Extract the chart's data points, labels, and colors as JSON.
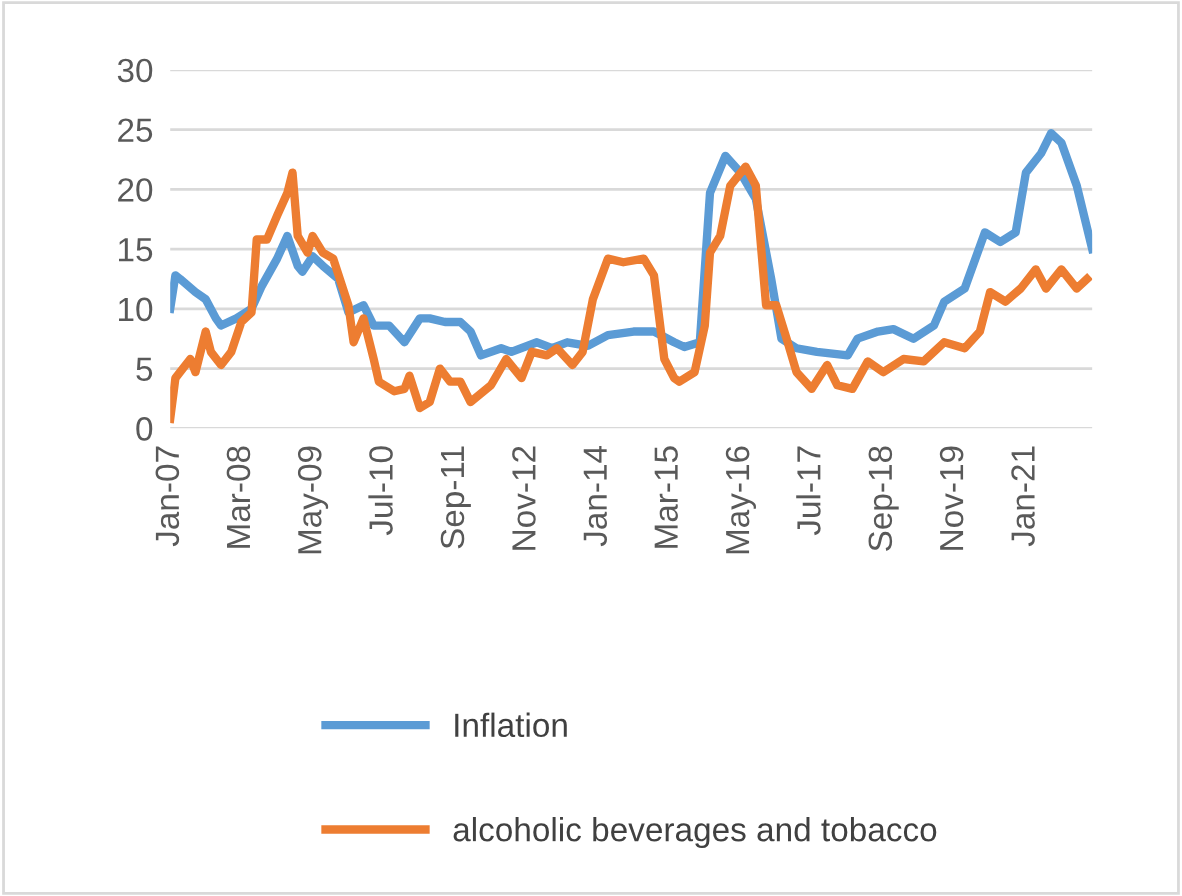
{
  "chart_data": {
    "type": "line",
    "xlim": [
      "2007-01",
      "2022-02"
    ],
    "xticks": [
      {
        "value": "2007-01",
        "label": "Jan-07"
      },
      {
        "value": "2008-03",
        "label": "Mar-08"
      },
      {
        "value": "2009-05",
        "label": "May-09"
      },
      {
        "value": "2010-07",
        "label": "Jul-10"
      },
      {
        "value": "2011-09",
        "label": "Sep-11"
      },
      {
        "value": "2012-11",
        "label": "Nov-12"
      },
      {
        "value": "2014-01",
        "label": "Jan-14"
      },
      {
        "value": "2015-03",
        "label": "Mar-15"
      },
      {
        "value": "2016-05",
        "label": "May-16"
      },
      {
        "value": "2017-07",
        "label": "Jul-17"
      },
      {
        "value": "2018-09",
        "label": "Sep-18"
      },
      {
        "value": "2019-11",
        "label": "Nov-19"
      },
      {
        "value": "2021-01",
        "label": "Jan-21"
      }
    ],
    "ylim": [
      0,
      30
    ],
    "yticks": [
      0,
      5,
      10,
      15,
      20,
      25,
      30
    ],
    "grid": "y",
    "legend": "bottom",
    "marker": "none",
    "line_style": "solid",
    "series": [
      {
        "name": "Inflation",
        "color": "#5b9bd5",
        "x": [
          "2007-01",
          "2007-02",
          "2007-03",
          "2007-06",
          "2007-08",
          "2007-10",
          "2007-11",
          "2008-02",
          "2008-05",
          "2008-07",
          "2008-10",
          "2008-12",
          "2009-02",
          "2009-03",
          "2009-05",
          "2009-07",
          "2009-10",
          "2009-12",
          "2010-03",
          "2010-05",
          "2010-08",
          "2010-11",
          "2011-02",
          "2011-04",
          "2011-07",
          "2011-10",
          "2011-12",
          "2012-02",
          "2012-06",
          "2012-08",
          "2013-01",
          "2013-04",
          "2013-07",
          "2013-11",
          "2014-03",
          "2014-08",
          "2014-12",
          "2015-04",
          "2015-06",
          "2015-09",
          "2015-11",
          "2016-02",
          "2016-05",
          "2016-08",
          "2016-11",
          "2017-01",
          "2017-04",
          "2017-08",
          "2018-02",
          "2018-04",
          "2018-08",
          "2018-11",
          "2019-03",
          "2019-07",
          "2019-09",
          "2020-01",
          "2020-05",
          "2020-08",
          "2020-11",
          "2021-01",
          "2021-04",
          "2021-06",
          "2021-08",
          "2021-11",
          "2022-02"
        ],
        "values": [
          10,
          12.8,
          12.5,
          11.4,
          10.8,
          9.2,
          8.6,
          9.2,
          10,
          11.9,
          14.2,
          16.1,
          13.6,
          13.1,
          14.4,
          13.6,
          12.5,
          9.7,
          10.3,
          8.6,
          8.6,
          7.2,
          9.2,
          9.2,
          8.9,
          8.9,
          8.1,
          6.1,
          6.7,
          6.4,
          7.2,
          6.7,
          7.2,
          6.9,
          7.8,
          8.1,
          8.1,
          7.2,
          6.8,
          7.2,
          19.7,
          22.8,
          21.4,
          19.2,
          12.5,
          7.5,
          6.7,
          6.4,
          6.1,
          7.5,
          8.1,
          8.3,
          7.5,
          8.6,
          10.6,
          11.7,
          16.4,
          15.6,
          16.4,
          21.4,
          23,
          24.7,
          23.9,
          20.3,
          15
        ]
      },
      {
        "name": "alcoholic beverages and tobacco",
        "color": "#ed7d31",
        "x": [
          "2007-01",
          "2007-02",
          "2007-05",
          "2007-06",
          "2007-08",
          "2007-09",
          "2007-11",
          "2008-01",
          "2008-03",
          "2008-05",
          "2008-06",
          "2008-08",
          "2008-10",
          "2008-12",
          "2009-01",
          "2009-02",
          "2009-04",
          "2009-05",
          "2009-07",
          "2009-09",
          "2009-12",
          "2010-01",
          "2010-03",
          "2010-05",
          "2010-06",
          "2010-09",
          "2010-11",
          "2010-12",
          "2011-02",
          "2011-04",
          "2011-06",
          "2011-08",
          "2011-10",
          "2011-12",
          "2012-04",
          "2012-07",
          "2012-10",
          "2012-12",
          "2013-03",
          "2013-05",
          "2013-08",
          "2013-10",
          "2013-12",
          "2014-03",
          "2014-06",
          "2014-10",
          "2014-12",
          "2015-02",
          "2015-04",
          "2015-05",
          "2015-08",
          "2015-10",
          "2015-11",
          "2016-01",
          "2016-03",
          "2016-06",
          "2016-08",
          "2016-10",
          "2016-12",
          "2017-02",
          "2017-04",
          "2017-07",
          "2017-10",
          "2017-12",
          "2018-03",
          "2018-06",
          "2018-09",
          "2019-01",
          "2019-05",
          "2019-09",
          "2020-01",
          "2020-04",
          "2020-06",
          "2020-09",
          "2020-12",
          "2021-03",
          "2021-05",
          "2021-08",
          "2021-11",
          "2022-01"
        ],
        "values": [
          0.8,
          4.2,
          5.8,
          4.7,
          8.1,
          6.4,
          5.3,
          6.4,
          8.9,
          9.7,
          15.8,
          15.8,
          17.8,
          19.7,
          21.4,
          16.1,
          14.7,
          16.1,
          14.7,
          14.2,
          10.3,
          7.2,
          9.2,
          5.8,
          3.9,
          3.1,
          3.3,
          4.4,
          1.7,
          2.2,
          5,
          3.9,
          3.9,
          2.2,
          3.6,
          5.8,
          4.2,
          6.4,
          6.1,
          6.7,
          5.3,
          6.4,
          10.8,
          14.2,
          13.9,
          14.2,
          12.8,
          5.8,
          4.2,
          3.9,
          4.7,
          8.6,
          14.7,
          16.1,
          20.3,
          21.9,
          20.3,
          10.3,
          10.3,
          7.5,
          4.7,
          3.3,
          5.3,
          3.6,
          3.3,
          5.6,
          4.7,
          5.8,
          5.6,
          7.2,
          6.7,
          8.1,
          11.4,
          10.6,
          11.7,
          13.3,
          11.7,
          13.3,
          11.7,
          12.5
        ]
      }
    ]
  }
}
